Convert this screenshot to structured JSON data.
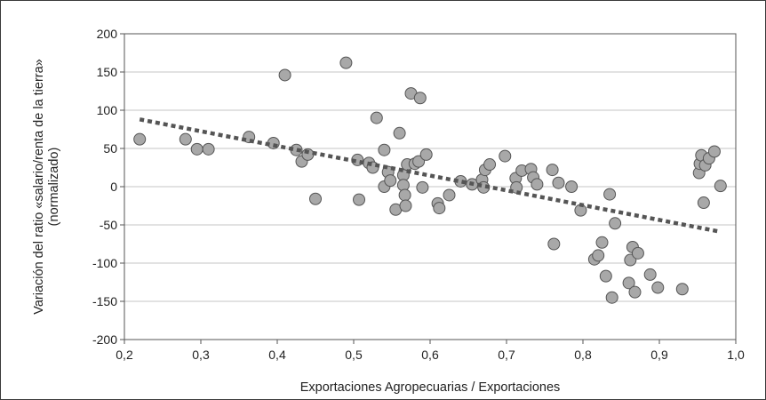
{
  "chart_data": {
    "type": "scatter",
    "title": "",
    "xlabel": "Exportaciones Agropecuarias / Exportaciones",
    "ylabel_lines": [
      "Variación del ratio «salario/renta de la tierra»",
      "(normalizado)"
    ],
    "xlim": [
      0.2,
      1.0
    ],
    "ylim": [
      -200,
      200
    ],
    "x_ticks": [
      "0,2",
      "0,3",
      "0,4",
      "0,5",
      "0,6",
      "0,7",
      "0,8",
      "0,9",
      "1,0"
    ],
    "x_tick_values": [
      0.2,
      0.3,
      0.4,
      0.5,
      0.6,
      0.7,
      0.8,
      0.9,
      1.0
    ],
    "y_ticks": [
      "200",
      "150",
      "100",
      "50",
      "0",
      "-50",
      "-100",
      "-150",
      "-200"
    ],
    "y_tick_values": [
      200,
      150,
      100,
      50,
      0,
      -50,
      -100,
      -150,
      -200
    ],
    "grid": "horizontal",
    "legend": "none",
    "colors": {
      "point_fill": "#a8a8a8",
      "point_stroke": "#555555",
      "trendline": "#555555",
      "grid": "#c4c4c4",
      "axis": "#555555"
    },
    "trendline": {
      "style": "dotted",
      "points": [
        [
          0.22,
          88
        ],
        [
          0.98,
          -59
        ]
      ]
    },
    "points": [
      [
        0.22,
        62
      ],
      [
        0.28,
        62
      ],
      [
        0.295,
        49
      ],
      [
        0.31,
        49
      ],
      [
        0.363,
        65
      ],
      [
        0.395,
        57
      ],
      [
        0.41,
        146
      ],
      [
        0.425,
        48
      ],
      [
        0.432,
        33
      ],
      [
        0.44,
        42
      ],
      [
        0.45,
        -16
      ],
      [
        0.49,
        162
      ],
      [
        0.505,
        35
      ],
      [
        0.507,
        -17
      ],
      [
        0.52,
        31
      ],
      [
        0.525,
        25
      ],
      [
        0.53,
        90
      ],
      [
        0.54,
        48
      ],
      [
        0.54,
        0
      ],
      [
        0.545,
        19
      ],
      [
        0.548,
        8
      ],
      [
        0.555,
        -30
      ],
      [
        0.56,
        70
      ],
      [
        0.565,
        15
      ],
      [
        0.565,
        2
      ],
      [
        0.567,
        -11
      ],
      [
        0.568,
        -25
      ],
      [
        0.57,
        29
      ],
      [
        0.575,
        122
      ],
      [
        0.58,
        30
      ],
      [
        0.585,
        33
      ],
      [
        0.587,
        116
      ],
      [
        0.59,
        -1
      ],
      [
        0.595,
        42
      ],
      [
        0.61,
        -22
      ],
      [
        0.612,
        -28
      ],
      [
        0.625,
        -11
      ],
      [
        0.64,
        7
      ],
      [
        0.655,
        3
      ],
      [
        0.668,
        9
      ],
      [
        0.67,
        -1
      ],
      [
        0.672,
        22
      ],
      [
        0.678,
        29
      ],
      [
        0.698,
        40
      ],
      [
        0.712,
        11
      ],
      [
        0.713,
        -1
      ],
      [
        0.72,
        21
      ],
      [
        0.732,
        23
      ],
      [
        0.735,
        12
      ],
      [
        0.74,
        3
      ],
      [
        0.76,
        22
      ],
      [
        0.762,
        -75
      ],
      [
        0.768,
        5
      ],
      [
        0.785,
        0
      ],
      [
        0.797,
        -31
      ],
      [
        0.815,
        -95
      ],
      [
        0.82,
        -90
      ],
      [
        0.825,
        -73
      ],
      [
        0.83,
        -117
      ],
      [
        0.835,
        -10
      ],
      [
        0.838,
        -145
      ],
      [
        0.842,
        -48
      ],
      [
        0.86,
        -126
      ],
      [
        0.862,
        -96
      ],
      [
        0.865,
        -79
      ],
      [
        0.868,
        -138
      ],
      [
        0.872,
        -87
      ],
      [
        0.888,
        -115
      ],
      [
        0.898,
        -132
      ],
      [
        0.93,
        -134
      ],
      [
        0.952,
        18
      ],
      [
        0.953,
        30
      ],
      [
        0.955,
        41
      ],
      [
        0.958,
        -21
      ],
      [
        0.96,
        28
      ],
      [
        0.965,
        37
      ],
      [
        0.972,
        46
      ],
      [
        0.98,
        1
      ]
    ]
  }
}
